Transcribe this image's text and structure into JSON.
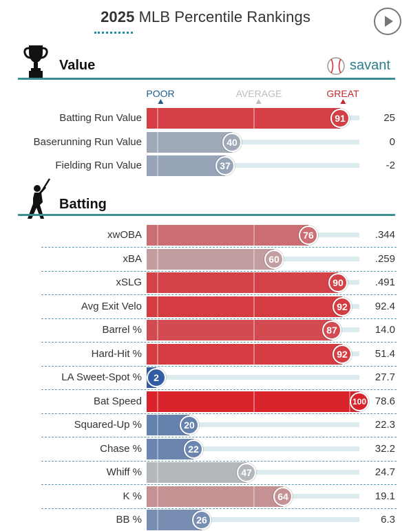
{
  "header": {
    "title_year": "2025",
    "title_rest": "MLB Percentile Rankings",
    "play_icon": "play-icon"
  },
  "brand": {
    "name": "savant",
    "icon": "baseball-icon"
  },
  "scale": {
    "poor": "POOR",
    "average": "AVERAGE",
    "great": "GREAT"
  },
  "colors": {
    "poor": "#2b59a3",
    "average": "#bdbdbd",
    "great": "#d8232a",
    "accent_rule": "#3a8e90",
    "track": "#dcebed"
  },
  "chart_data": {
    "type": "bar",
    "title": "2025 MLB Percentile Rankings",
    "xlim": [
      0,
      100
    ],
    "sections": [
      {
        "name": "Value",
        "icon": "trophy-icon",
        "metrics": [
          {
            "label": "Batting Run Value",
            "percentile": 91,
            "value": "25"
          },
          {
            "label": "Baserunning Run Value",
            "percentile": 40,
            "value": "0"
          },
          {
            "label": "Fielding Run Value",
            "percentile": 37,
            "value": "-2"
          }
        ]
      },
      {
        "name": "Batting",
        "icon": "batter-icon",
        "metrics": [
          {
            "label": "xwOBA",
            "percentile": 76,
            "value": ".344"
          },
          {
            "label": "xBA",
            "percentile": 60,
            "value": ".259"
          },
          {
            "label": "xSLG",
            "percentile": 90,
            "value": ".491"
          },
          {
            "label": "Avg Exit Velo",
            "percentile": 92,
            "value": "92.4"
          },
          {
            "label": "Barrel %",
            "percentile": 87,
            "value": "14.0"
          },
          {
            "label": "Hard-Hit %",
            "percentile": 92,
            "value": "51.4"
          },
          {
            "label": "LA Sweet-Spot %",
            "percentile": 2,
            "value": "27.7"
          },
          {
            "label": "Bat Speed",
            "percentile": 100,
            "value": "78.6"
          },
          {
            "label": "Squared-Up %",
            "percentile": 20,
            "value": "22.3"
          },
          {
            "label": "Chase %",
            "percentile": 22,
            "value": "32.2"
          },
          {
            "label": "Whiff %",
            "percentile": 47,
            "value": "24.7"
          },
          {
            "label": "K %",
            "percentile": 64,
            "value": "19.1"
          },
          {
            "label": "BB %",
            "percentile": 26,
            "value": "6.3"
          }
        ]
      }
    ]
  }
}
